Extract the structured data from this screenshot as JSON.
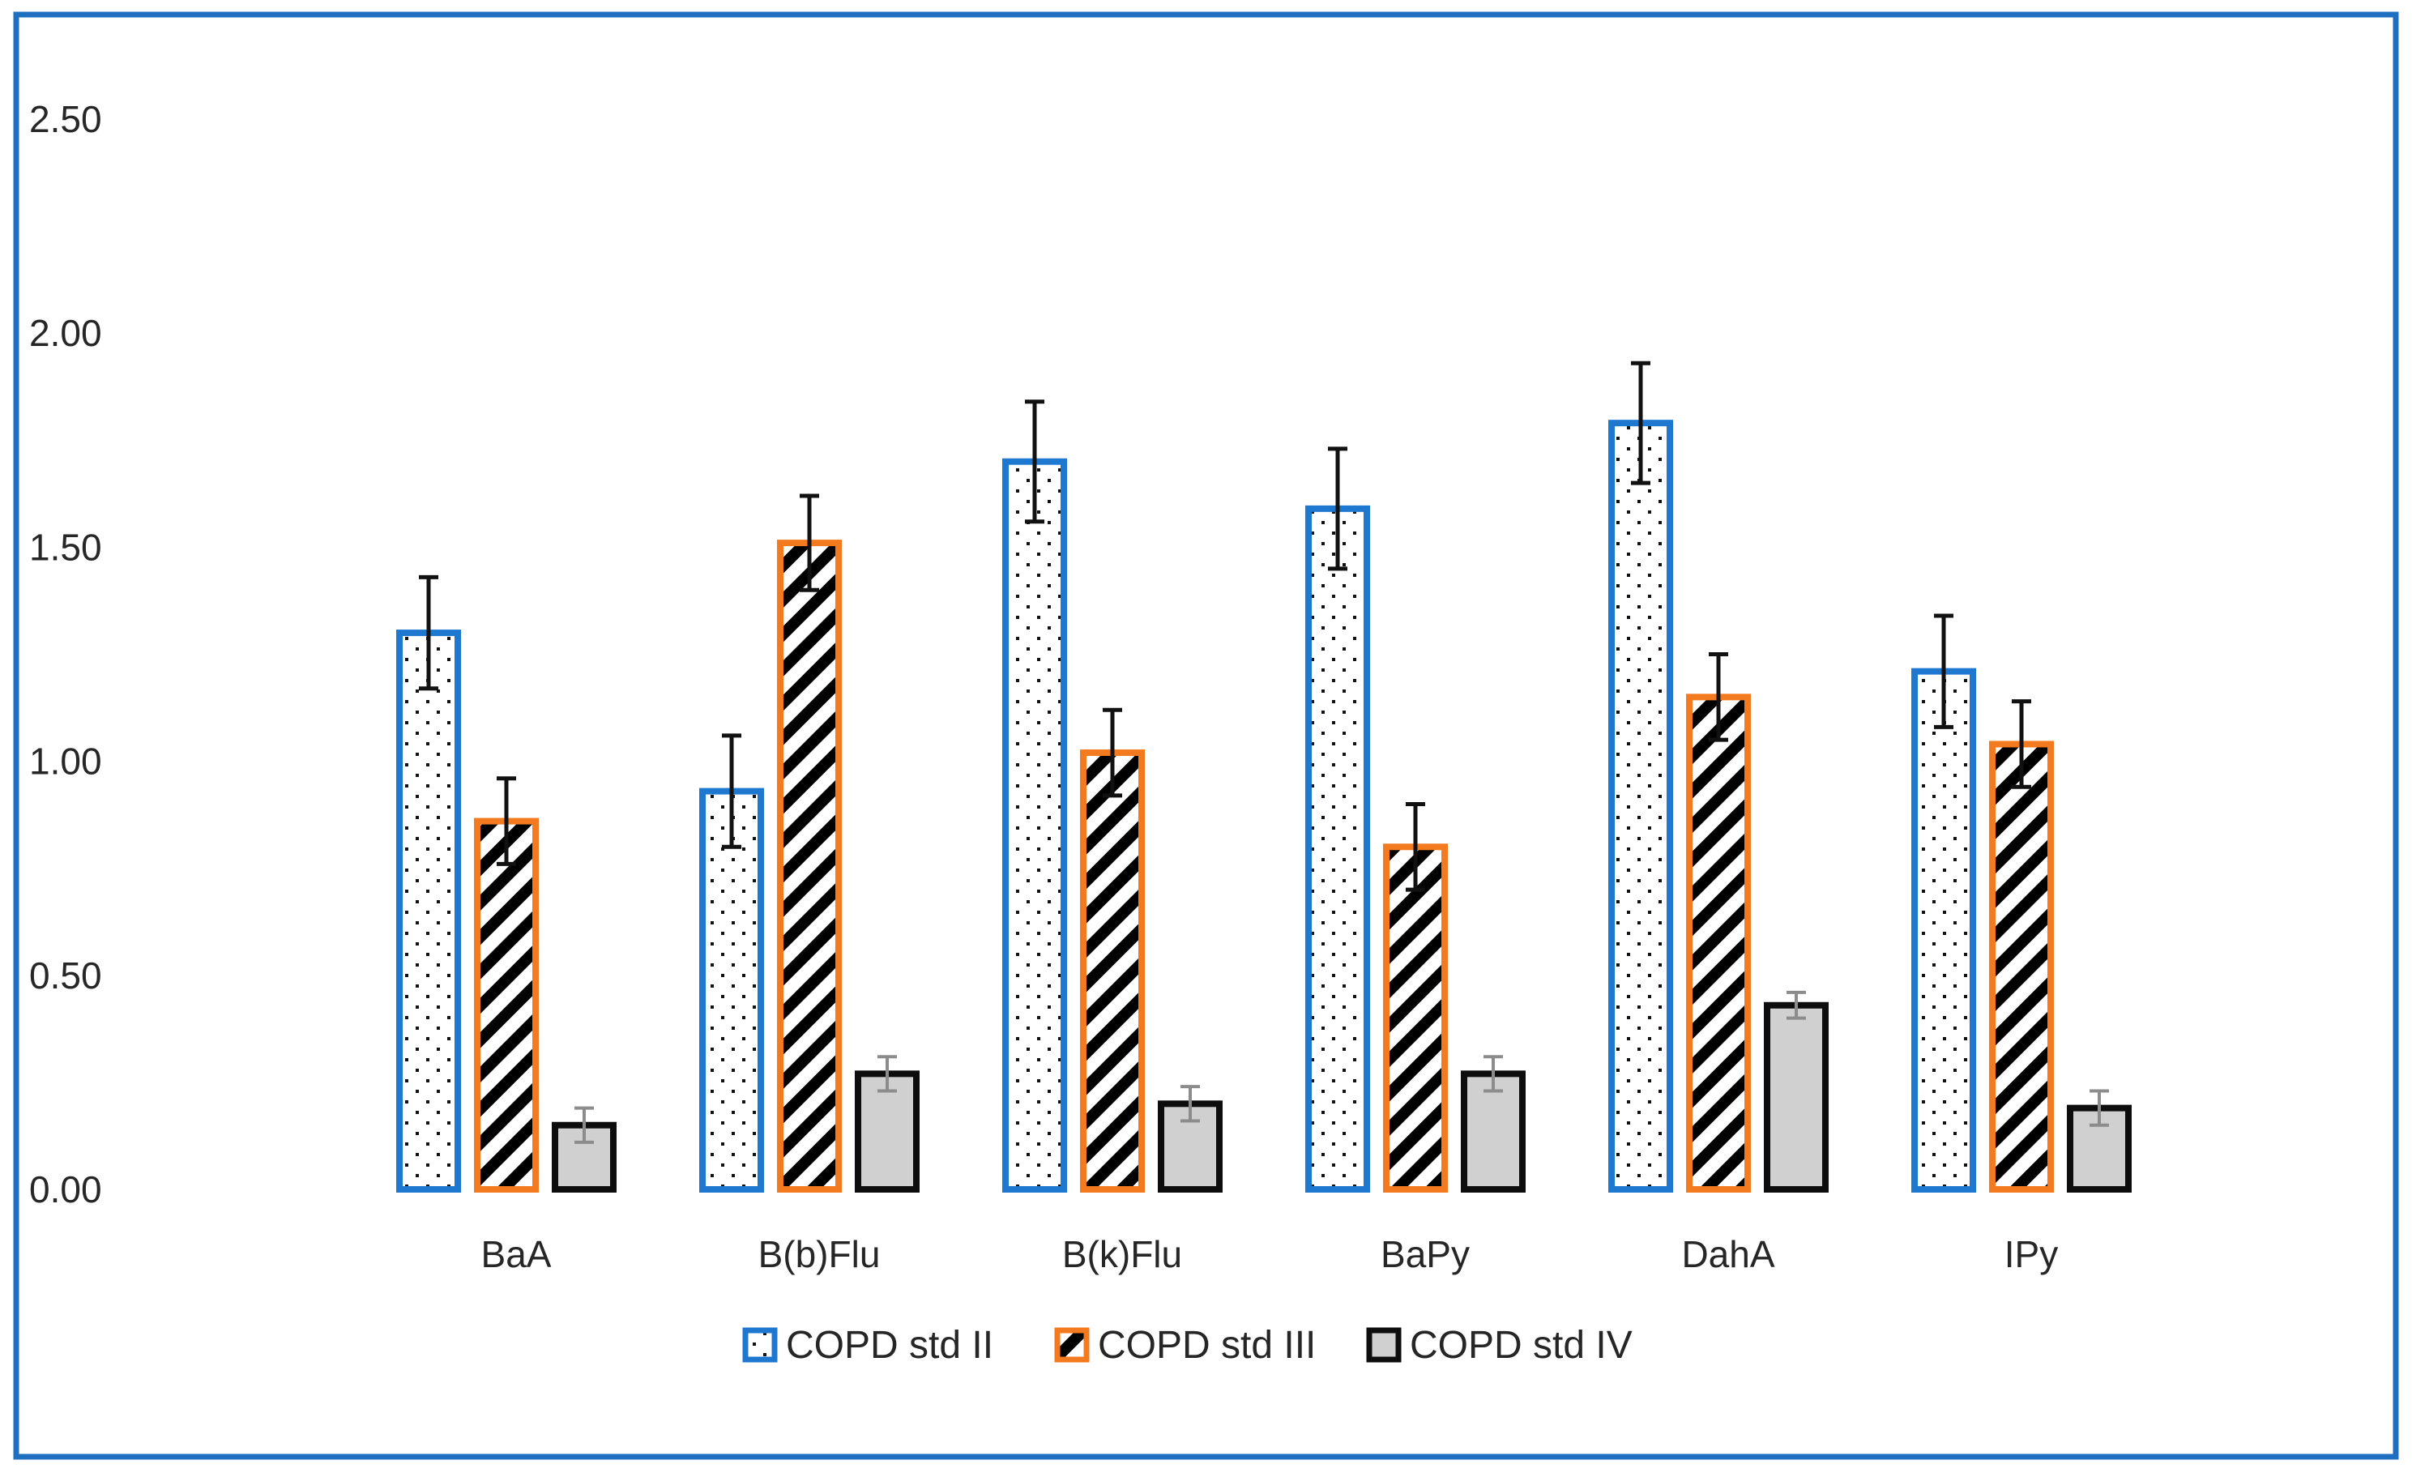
{
  "chart_data": {
    "type": "bar",
    "title": "",
    "xlabel": "",
    "ylabel": "",
    "ylim": [
      0,
      2.5
    ],
    "yticks": [
      "0.00",
      "0.50",
      "1.00",
      "1.50",
      "2.00",
      "2.50"
    ],
    "ytick_values": [
      0,
      0.5,
      1.0,
      1.5,
      2.0,
      2.5
    ],
    "grid": false,
    "legend_position": "bottom",
    "categories": [
      "BaA",
      "B(b)Flu",
      "B(k)Flu",
      "BaPy",
      "DahA",
      "IPy"
    ],
    "series": [
      {
        "name": "COPD std II",
        "color": "#1F78D0",
        "fill": "dotted",
        "values": [
          1.3,
          0.93,
          1.7,
          1.59,
          1.79,
          1.21
        ],
        "errors": [
          0.13,
          0.13,
          0.14,
          0.14,
          0.14,
          0.13
        ]
      },
      {
        "name": "COPD std III",
        "color": "#F47A20",
        "fill": "diagonal-stripes",
        "values": [
          0.86,
          1.51,
          1.02,
          0.8,
          1.15,
          1.04
        ],
        "errors": [
          0.1,
          0.11,
          0.1,
          0.1,
          0.1,
          0.1
        ]
      },
      {
        "name": "COPD std IV",
        "color": "#0D0D0D",
        "fill": "#D0D0D0",
        "values": [
          0.15,
          0.27,
          0.2,
          0.27,
          0.43,
          0.19
        ],
        "errors": [
          0.04,
          0.04,
          0.04,
          0.04,
          0.03,
          0.04
        ]
      }
    ],
    "frame_color": "#1F6FC0"
  }
}
